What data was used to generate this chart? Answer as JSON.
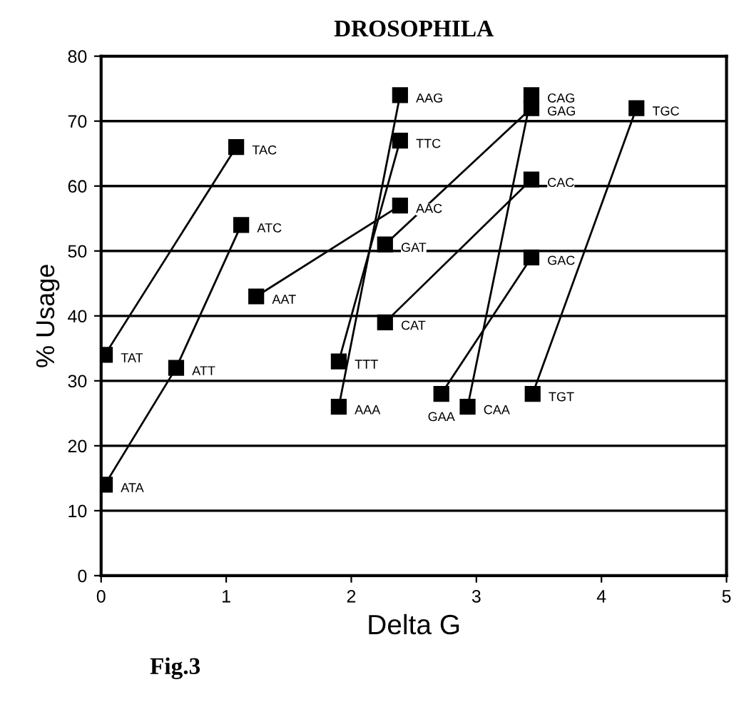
{
  "chart_data": {
    "type": "line",
    "title": "DROSOPHILA",
    "xlabel": "Delta G",
    "ylabel": "% Usage",
    "xlim": [
      0,
      5
    ],
    "ylim": [
      0,
      80
    ],
    "xticks": [
      0,
      1,
      2,
      3,
      4,
      5
    ],
    "yticks": [
      0,
      10,
      20,
      30,
      40,
      50,
      60,
      70,
      80
    ],
    "grid": "y",
    "legend": false,
    "marker": "square",
    "line_style": "solid",
    "series": [
      {
        "color": "#000000",
        "x": [
          0.03,
          1.08
        ],
        "values": [
          34,
          66
        ]
      },
      {
        "color": "#000000",
        "x": [
          0.03,
          0.6,
          1.12
        ],
        "values": [
          14,
          32,
          54
        ]
      },
      {
        "color": "#000000",
        "x": [
          1.24,
          2.39
        ],
        "values": [
          43,
          57
        ]
      },
      {
        "color": "#000000",
        "x": [
          1.9,
          2.39
        ],
        "values": [
          33,
          67
        ]
      },
      {
        "color": "#000000",
        "x": [
          1.9,
          2.39
        ],
        "values": [
          26,
          74
        ]
      },
      {
        "color": "#000000",
        "x": [
          2.27,
          3.44
        ],
        "values": [
          51,
          72
        ]
      },
      {
        "color": "#000000",
        "x": [
          2.27,
          3.44
        ],
        "values": [
          39,
          61
        ]
      },
      {
        "color": "#000000",
        "x": [
          2.72,
          3.44
        ],
        "values": [
          28,
          49
        ]
      },
      {
        "color": "#000000",
        "x": [
          2.93,
          3.44
        ],
        "values": [
          26,
          74
        ]
      },
      {
        "color": "#000000",
        "x": [
          3.45,
          4.28
        ],
        "values": [
          28,
          72
        ]
      }
    ],
    "annotations": [
      {
        "text": "TAT",
        "x": 0.03,
        "y": 34
      },
      {
        "text": "TAC",
        "x": 1.08,
        "y": 66
      },
      {
        "text": "ATA",
        "x": 0.03,
        "y": 14
      },
      {
        "text": "ATT",
        "x": 0.6,
        "y": 32
      },
      {
        "text": "ATC",
        "x": 1.12,
        "y": 54
      },
      {
        "text": "AAT",
        "x": 1.24,
        "y": 43
      },
      {
        "text": "AAC",
        "x": 2.39,
        "y": 57
      },
      {
        "text": "TTT",
        "x": 1.9,
        "y": 33
      },
      {
        "text": "TTC",
        "x": 2.39,
        "y": 67
      },
      {
        "text": "AAA",
        "x": 1.9,
        "y": 26
      },
      {
        "text": "AAG",
        "x": 2.39,
        "y": 74
      },
      {
        "text": "GAT",
        "x": 2.27,
        "y": 51
      },
      {
        "text": "GAG",
        "x": 3.44,
        "y": 72
      },
      {
        "text": "CAT",
        "x": 2.27,
        "y": 39
      },
      {
        "text": "CAC",
        "x": 3.44,
        "y": 61
      },
      {
        "text": "GAA",
        "x": 2.72,
        "y": 28
      },
      {
        "text": "GAC",
        "x": 3.44,
        "y": 49
      },
      {
        "text": "CAA",
        "x": 2.93,
        "y": 26
      },
      {
        "text": "CAG",
        "x": 3.44,
        "y": 74
      },
      {
        "text": "TGT",
        "x": 3.45,
        "y": 28
      },
      {
        "text": "TGC",
        "x": 4.28,
        "y": 72
      },
      "Fig.3"
    ]
  }
}
